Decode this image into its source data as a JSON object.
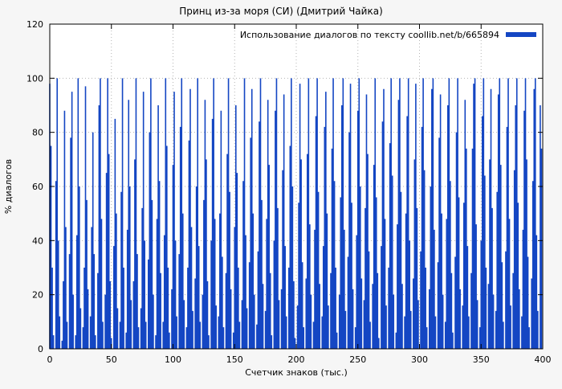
{
  "chart_data": {
    "type": "bar",
    "title": "Принц из-за моря (СИ) (Дмитрий Чайка)",
    "legend": "Использование диалогов по тексту coollib.net/b/665894",
    "xlabel": "Счетчик знаков (тыс.)",
    "ylabel": "% диалогов",
    "xlim": [
      0,
      400
    ],
    "ylim": [
      0,
      120
    ],
    "xticks": [
      0,
      50,
      100,
      150,
      200,
      250,
      300,
      350,
      400
    ],
    "yticks": [
      0,
      20,
      40,
      60,
      80,
      100,
      120
    ],
    "grid": true,
    "legend_position": "top-right",
    "bar_color": "#1446c3",
    "x_start": 0,
    "x_step": 1,
    "values": [
      98,
      75,
      30,
      5,
      0,
      62,
      100,
      40,
      12,
      0,
      3,
      25,
      88,
      45,
      10,
      0,
      35,
      78,
      95,
      20,
      0,
      5,
      42,
      100,
      60,
      15,
      0,
      8,
      30,
      97,
      55,
      22,
      0,
      12,
      45,
      80,
      35,
      5,
      0,
      28,
      90,
      100,
      48,
      10,
      0,
      20,
      65,
      100,
      72,
      25,
      4,
      0,
      38,
      85,
      50,
      15,
      0,
      10,
      58,
      100,
      30,
      0,
      6,
      44,
      92,
      60,
      18,
      0,
      25,
      70,
      100,
      35,
      8,
      0,
      15,
      52,
      95,
      40,
      10,
      0,
      33,
      80,
      100,
      55,
      20,
      0,
      5,
      48,
      90,
      62,
      28,
      0,
      10,
      42,
      100,
      75,
      30,
      6,
      0,
      22,
      68,
      95,
      40,
      12,
      0,
      35,
      82,
      100,
      50,
      18,
      0,
      8,
      30,
      77,
      96,
      45,
      14,
      0,
      26,
      60,
      100,
      38,
      10,
      0,
      20,
      55,
      92,
      70,
      25,
      5,
      0,
      40,
      85,
      100,
      48,
      16,
      0,
      12,
      50,
      88,
      34,
      8,
      0,
      28,
      72,
      100,
      58,
      22,
      0,
      6,
      45,
      90,
      65,
      30,
      10,
      0,
      18,
      62,
      100,
      42,
      15,
      0,
      32,
      78,
      96,
      50,
      20,
      0,
      9,
      36,
      84,
      100,
      55,
      24,
      0,
      14,
      48,
      92,
      68,
      28,
      5,
      0,
      40,
      88,
      100,
      52,
      18,
      0,
      22,
      66,
      94,
      38,
      12,
      0,
      30,
      75,
      100,
      60,
      25,
      4,
      0,
      16,
      54,
      98,
      70,
      32,
      8,
      0,
      26,
      72,
      100,
      46,
      20,
      0,
      10,
      44,
      86,
      100,
      58,
      24,
      0,
      12,
      38,
      82,
      95,
      50,
      16,
      0,
      28,
      74,
      100,
      62,
      30,
      6,
      0,
      20,
      56,
      90,
      100,
      44,
      14,
      0,
      34,
      80,
      98,
      54,
      22,
      0,
      8,
      42,
      88,
      100,
      60,
      26,
      0,
      18,
      52,
      94,
      72,
      36,
      10,
      0,
      24,
      68,
      100,
      56,
      28,
      4,
      0,
      38,
      84,
      96,
      48,
      16,
      0,
      30,
      76,
      100,
      64,
      20,
      0,
      6,
      46,
      92,
      100,
      58,
      24,
      0,
      12,
      50,
      86,
      100,
      40,
      14,
      0,
      26,
      70,
      98,
      52,
      18,
      0,
      36,
      82,
      100,
      66,
      30,
      8,
      0,
      22,
      60,
      96,
      100,
      44,
      12,
      0,
      32,
      78,
      94,
      50,
      20,
      0,
      10,
      48,
      90,
      100,
      62,
      28,
      6,
      0,
      34,
      80,
      100,
      56,
      22,
      0,
      16,
      54,
      92,
      74,
      38,
      12,
      0,
      28,
      74,
      98,
      100,
      46,
      18,
      0,
      8,
      40,
      86,
      100,
      64,
      30,
      0,
      24,
      70,
      96,
      52,
      20,
      0,
      14,
      58,
      94,
      100,
      68,
      32,
      10,
      0,
      36,
      82,
      100,
      48,
      16,
      0,
      28,
      66,
      90,
      100,
      54,
      22,
      0,
      12,
      44,
      88,
      100,
      70,
      34,
      8,
      0,
      26,
      62,
      96,
      100,
      42,
      14,
      0,
      90,
      74
    ]
  }
}
